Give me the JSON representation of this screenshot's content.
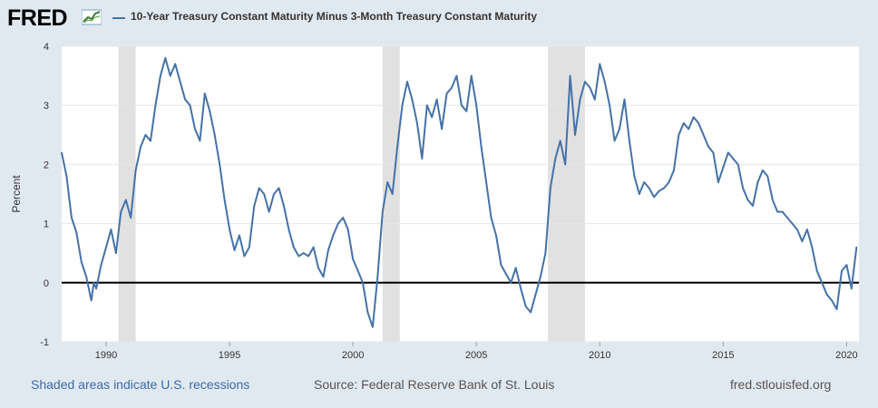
{
  "header": {
    "logo_text": "FRED",
    "legend_label": "10-Year Treasury Constant Maturity Minus 3-Month Treasury Constant Maturity"
  },
  "footer": {
    "recession_note": "Shaded areas indicate U.S. recessions",
    "source": "Source: Federal Reserve Bank of St. Louis",
    "site": "fred.stlouisfed.org"
  },
  "colors": {
    "line": "#4572a7",
    "recession": "#e1e1e1",
    "background": "#e1e9f0",
    "plot_bg": "#ffffff",
    "zero_line": "#000000"
  },
  "chart_data": {
    "type": "line",
    "title": "",
    "xlabel": "",
    "ylabel": "Percent",
    "xlim": [
      1988.2,
      2020.5
    ],
    "ylim": [
      -1,
      4
    ],
    "grid": true,
    "x_ticks": [
      1990,
      1995,
      2000,
      2005,
      2010,
      2015,
      2020
    ],
    "x_tick_labels": [
      "1990",
      "1995",
      "2000",
      "2005",
      "2010",
      "2015",
      "2020"
    ],
    "y_ticks": [
      -1,
      0,
      1,
      2,
      3,
      4
    ],
    "y_tick_labels": [
      "-1",
      "0",
      "1",
      "2",
      "3",
      "4"
    ],
    "recessions": [
      [
        1990.5,
        1991.2
      ],
      [
        2001.2,
        2001.9
      ],
      [
        2007.9,
        2009.4
      ]
    ],
    "series": [
      {
        "name": "10-Year Treasury Constant Maturity Minus 3-Month Treasury Constant Maturity",
        "x": [
          1988.2,
          1988.4,
          1988.6,
          1988.8,
          1989.0,
          1989.2,
          1989.4,
          1989.5,
          1989.6,
          1989.8,
          1990.0,
          1990.2,
          1990.4,
          1990.6,
          1990.8,
          1991.0,
          1991.2,
          1991.4,
          1991.6,
          1991.8,
          1992.0,
          1992.2,
          1992.4,
          1992.6,
          1992.8,
          1993.0,
          1993.2,
          1993.4,
          1993.6,
          1993.8,
          1994.0,
          1994.2,
          1994.4,
          1994.6,
          1994.8,
          1995.0,
          1995.2,
          1995.4,
          1995.6,
          1995.8,
          1996.0,
          1996.2,
          1996.4,
          1996.6,
          1996.8,
          1997.0,
          1997.2,
          1997.4,
          1997.6,
          1997.8,
          1998.0,
          1998.2,
          1998.4,
          1998.6,
          1998.8,
          1999.0,
          1999.2,
          1999.4,
          1999.6,
          1999.8,
          2000.0,
          2000.2,
          2000.4,
          2000.6,
          2000.8,
          2001.0,
          2001.2,
          2001.4,
          2001.6,
          2001.8,
          2002.0,
          2002.2,
          2002.4,
          2002.6,
          2002.8,
          2003.0,
          2003.2,
          2003.4,
          2003.6,
          2003.8,
          2004.0,
          2004.2,
          2004.4,
          2004.6,
          2004.8,
          2005.0,
          2005.2,
          2005.4,
          2005.6,
          2005.8,
          2006.0,
          2006.2,
          2006.4,
          2006.6,
          2006.8,
          2007.0,
          2007.2,
          2007.4,
          2007.6,
          2007.8,
          2008.0,
          2008.2,
          2008.4,
          2008.6,
          2008.8,
          2009.0,
          2009.2,
          2009.4,
          2009.6,
          2009.8,
          2010.0,
          2010.2,
          2010.4,
          2010.6,
          2010.8,
          2011.0,
          2011.2,
          2011.4,
          2011.6,
          2011.8,
          2012.0,
          2012.2,
          2012.4,
          2012.6,
          2012.8,
          2013.0,
          2013.2,
          2013.4,
          2013.6,
          2013.8,
          2014.0,
          2014.2,
          2014.4,
          2014.6,
          2014.8,
          2015.0,
          2015.2,
          2015.4,
          2015.6,
          2015.8,
          2016.0,
          2016.2,
          2016.4,
          2016.6,
          2016.8,
          2017.0,
          2017.2,
          2017.4,
          2017.6,
          2017.8,
          2018.0,
          2018.2,
          2018.4,
          2018.6,
          2018.8,
          2019.0,
          2019.2,
          2019.4,
          2019.6,
          2019.8,
          2020.0,
          2020.2,
          2020.4
        ],
        "values": [
          2.2,
          1.8,
          1.1,
          0.85,
          0.35,
          0.1,
          -0.3,
          0.0,
          -0.1,
          0.3,
          0.6,
          0.9,
          0.5,
          1.2,
          1.4,
          1.1,
          1.9,
          2.3,
          2.5,
          2.4,
          3.0,
          3.5,
          3.8,
          3.5,
          3.7,
          3.4,
          3.1,
          3.0,
          2.6,
          2.4,
          3.2,
          2.9,
          2.5,
          2.0,
          1.4,
          0.9,
          0.55,
          0.8,
          0.45,
          0.6,
          1.3,
          1.6,
          1.5,
          1.2,
          1.5,
          1.6,
          1.3,
          0.9,
          0.6,
          0.45,
          0.5,
          0.45,
          0.6,
          0.25,
          0.1,
          0.55,
          0.8,
          1.0,
          1.1,
          0.9,
          0.4,
          0.2,
          0.0,
          -0.5,
          -0.75,
          0.1,
          1.2,
          1.7,
          1.5,
          2.3,
          3.0,
          3.4,
          3.1,
          2.7,
          2.1,
          3.0,
          2.8,
          3.1,
          2.6,
          3.2,
          3.3,
          3.5,
          3.0,
          2.9,
          3.5,
          3.0,
          2.3,
          1.7,
          1.1,
          0.8,
          0.3,
          0.15,
          0.0,
          0.25,
          -0.1,
          -0.4,
          -0.5,
          -0.2,
          0.1,
          0.5,
          1.6,
          2.1,
          2.4,
          2.0,
          3.5,
          2.5,
          3.1,
          3.4,
          3.3,
          3.1,
          3.7,
          3.4,
          3.0,
          2.4,
          2.6,
          3.1,
          2.4,
          1.8,
          1.5,
          1.7,
          1.6,
          1.45,
          1.55,
          1.6,
          1.7,
          1.9,
          2.5,
          2.7,
          2.6,
          2.8,
          2.7,
          2.5,
          2.3,
          2.2,
          1.7,
          1.95,
          2.2,
          2.1,
          2.0,
          1.6,
          1.4,
          1.3,
          1.7,
          1.9,
          1.8,
          1.4,
          1.2,
          1.2,
          1.1,
          1.0,
          0.9,
          0.7,
          0.9,
          0.6,
          0.2,
          0.0,
          -0.2,
          -0.3,
          -0.45,
          0.2,
          0.3,
          -0.1,
          0.6
        ]
      }
    ]
  }
}
